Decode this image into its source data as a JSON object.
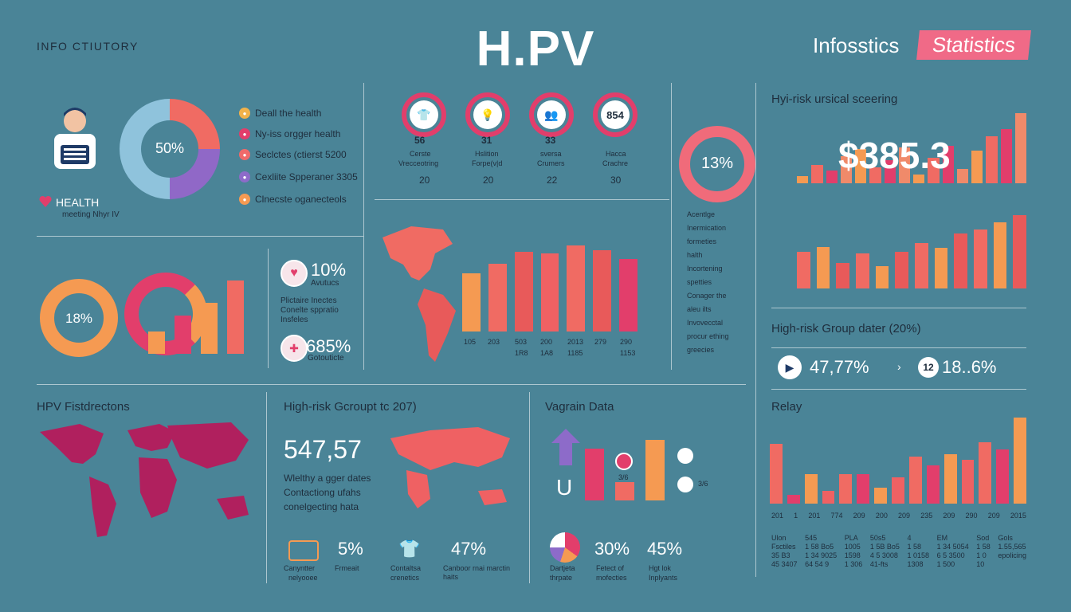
{
  "header": {
    "left_label": "INFO CTIUTORY",
    "title": "H.PV",
    "right_label": "Infosstics",
    "right_badge": "Statistics"
  },
  "health_panel": {
    "pie_center": "50%",
    "health_label": "HEALTH",
    "health_sub": "meeting Nhyr IV",
    "legend": [
      {
        "text": "Deall the health",
        "color": "#f2b24a"
      },
      {
        "text": "Ny-iss orgger health",
        "color": "#e23e6b"
      },
      {
        "text": "Seclctes (ctierst 5200",
        "color": "#ef6a6a"
      },
      {
        "text": "Cexliite Spperaner 3305",
        "color": "#8d6bc9"
      },
      {
        "text": "Clnecste oganecteols",
        "color": "#f59a52"
      }
    ],
    "pie_segments": [
      {
        "value": 25,
        "color": "#f06b63"
      },
      {
        "value": 25,
        "color": "#9068c7"
      },
      {
        "value": 50,
        "color": "#8fc3dc"
      }
    ]
  },
  "icon_row": {
    "items": [
      {
        "top": "56",
        "label1": "Cerste",
        "label2": "Vrecceotring",
        "value": "20",
        "icon": "shirt-icon"
      },
      {
        "top": "31",
        "label1": "Hslition",
        "label2": "Forpe(v|d",
        "value": "20",
        "icon": "lightbulb-icon"
      },
      {
        "top": "33",
        "label1": "sversa",
        "label2": "Crumers",
        "value": "22",
        "icon": "people-icon"
      },
      {
        "top": "46",
        "label1": "Hacca",
        "label2": "Crachre",
        "value": "30",
        "icon": "number-icon",
        "inner": "854"
      }
    ]
  },
  "ring_panel": {
    "value": "13%",
    "list": [
      "Acentlge",
      "Inermication",
      "formeties",
      "halth",
      "Incortening",
      "spetties",
      "Conager the",
      "aleu ilts",
      "Invovecctal",
      "procur ething",
      "greecies"
    ]
  },
  "top_right_chart": {
    "title": "Hyi-risk ursical sceering",
    "value": "$385.3"
  },
  "middle_left": {
    "donut_value": "18%",
    "stat1_value": "10%",
    "stat1_label": "Avutucs",
    "stat2_value": "685%",
    "stat2_label": "Gotouticte",
    "text_lines": [
      "Plictaire Inectes",
      "Conelte sppratio",
      "Insfeles"
    ]
  },
  "map_bar_panel": {
    "x_labels": [
      "105",
      "203",
      "503",
      "200",
      "2013",
      "279",
      "290"
    ],
    "x_sub_labels": [
      "",
      "",
      "1R8",
      "1A8",
      "1185",
      "",
      "1153"
    ]
  },
  "right_mid": {
    "title": "High-risk Group dater (20%)",
    "left_value": "47,77%",
    "right_icon_text": "12",
    "right_value": "18..6%"
  },
  "bottom_left": {
    "title": "HPV Fistdrectons"
  },
  "bottom_center": {
    "title": "High-risk Gcroupt tc 207)",
    "big_number": "547,57",
    "lines": [
      "Wlelthy a gger dates",
      "Contactiong ufahs",
      "conelgecting hata"
    ],
    "stats": [
      {
        "value": "5%",
        "l1": "Canyntter",
        "l2": "nelyooee",
        "icon_l": "Frmeait"
      },
      {
        "value": "47%",
        "l1": "Contaltsa",
        "l2": "crenetics",
        "icon_l": "Canboor rnai marctin haits"
      }
    ]
  },
  "vagrain": {
    "title": "Vagrain Data",
    "letter": "U",
    "small_labels": [
      "3/6",
      "3/6"
    ],
    "stats": [
      {
        "value": "30%",
        "l1": "Fetect of",
        "l2": "mofecties"
      },
      {
        "value": "45%",
        "l1": "Hgt lok",
        "l2": "Inplyants"
      }
    ],
    "pie_label1": "Dartjeta",
    "pie_label2": "thrpate"
  },
  "relay": {
    "title": "Relay",
    "x_labels": [
      "201",
      "1",
      "201",
      "774",
      "209",
      "200",
      "209",
      "235",
      "209",
      "290",
      "209",
      "2015"
    ],
    "table": [
      [
        "Ulon",
        "Fsctiles",
        "35 B3",
        "45 3407"
      ],
      [
        "545",
        "1 58 Bo5",
        "1 34 9025",
        "64 54 9"
      ],
      [
        "PLA",
        "1005",
        "1598",
        "1 306"
      ],
      [
        "50s5",
        "1 5B Bo5",
        "4 5 3008",
        "41-fts"
      ],
      [
        "4",
        "1 58",
        "1 0158",
        "1308"
      ],
      [
        "EM",
        "1 34 5054",
        "6 5 3500",
        "1 500"
      ],
      [
        "Sod",
        "1 58",
        "1 0",
        "10"
      ],
      [
        "Gols",
        "1.55,565",
        "epolicing",
        ""
      ]
    ]
  },
  "chart_data": [
    {
      "type": "bar",
      "title": "Hyi-risk ursical sceering",
      "values": [
        8,
        20,
        14,
        30,
        38,
        18,
        26,
        40,
        10,
        28,
        42,
        16,
        36,
        52,
        60,
        78
      ]
    },
    {
      "type": "bar",
      "title": "",
      "values": [
        40,
        45,
        28,
        38,
        24,
        40,
        50,
        44,
        60,
        64,
        72,
        80
      ]
    },
    {
      "type": "bar",
      "title": "",
      "categories": [
        "105",
        "203",
        "503",
        "200",
        "2013",
        "279",
        "290"
      ],
      "values": [
        70,
        82,
        96,
        94,
        104,
        98,
        88
      ]
    },
    {
      "type": "bar",
      "title": "Relay",
      "values": [
        82,
        12,
        40,
        18,
        40,
        40,
        22,
        36,
        64,
        52,
        68,
        60,
        84,
        74,
        118
      ]
    }
  ]
}
